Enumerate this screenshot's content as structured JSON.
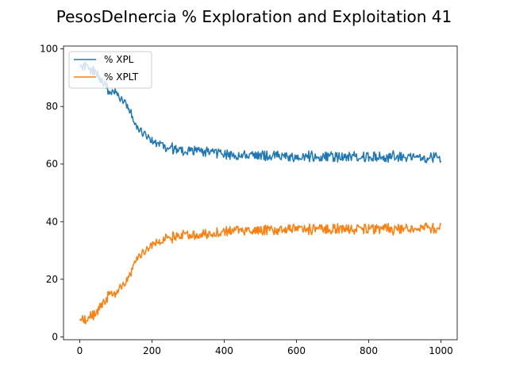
{
  "chart_data": {
    "type": "line",
    "title": "PesosDeInercia % Exploration and Exploitation 41",
    "xlabel": "",
    "ylabel": "",
    "xlim": [
      -45,
      1045
    ],
    "ylim": [
      -1,
      101
    ],
    "xticks": [
      0,
      200,
      400,
      600,
      800,
      1000
    ],
    "yticks": [
      0,
      20,
      40,
      60,
      80,
      100
    ],
    "legend": "top-left",
    "grid": false,
    "series": [
      {
        "name": "% XPL",
        "color": "#1f77b4",
        "x": [
          0,
          20,
          40,
          60,
          80,
          100,
          120,
          140,
          160,
          180,
          200,
          220,
          240,
          260,
          280,
          300,
          350,
          400,
          450,
          500,
          550,
          600,
          700,
          800,
          900,
          1000
        ],
        "y": [
          95,
          94,
          92,
          89,
          86,
          84,
          82,
          78,
          73,
          70,
          68,
          67,
          66,
          65.5,
          65,
          65,
          64.5,
          63.5,
          63,
          63,
          62.5,
          62.5,
          62.5,
          62.5,
          62.5,
          62
        ]
      },
      {
        "name": "% XPLT",
        "color": "#ff7f0e",
        "x": [
          0,
          20,
          40,
          60,
          80,
          100,
          120,
          140,
          160,
          180,
          200,
          220,
          240,
          260,
          280,
          300,
          350,
          400,
          450,
          500,
          550,
          600,
          700,
          800,
          900,
          1000
        ],
        "y": [
          5,
          6,
          8,
          11,
          14,
          16,
          18,
          22,
          27,
          30,
          32,
          33,
          34,
          34.5,
          35,
          35,
          35.5,
          36.5,
          37,
          37,
          37.5,
          37.5,
          37.5,
          37.5,
          37.5,
          38
        ]
      }
    ]
  }
}
